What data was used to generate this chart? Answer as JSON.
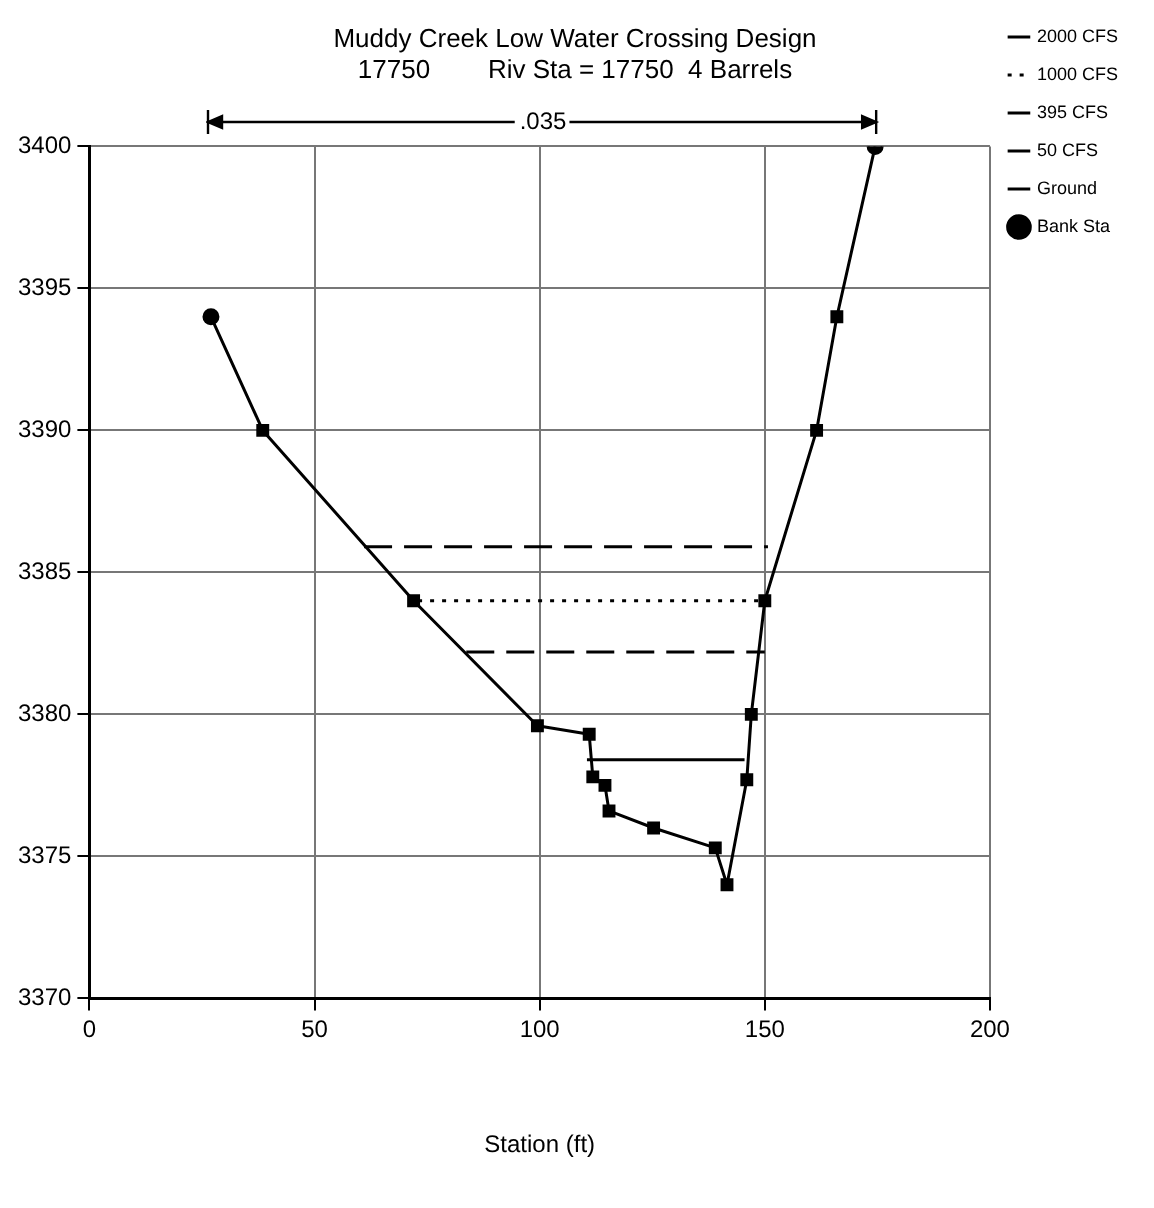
{
  "chart_data": {
    "type": "line",
    "title": "Muddy Creek Low Water Crossing Design",
    "subtitle": "17750        Riv Sta = 17750  4 Barrels",
    "xlabel": "Station (ft)",
    "xlim": [
      0,
      200
    ],
    "xticks": [
      0,
      50,
      100,
      150,
      200
    ],
    "ylim": [
      3370,
      3400
    ],
    "yticks": [
      3370,
      3375,
      3380,
      3385,
      3390,
      3395,
      3400
    ],
    "grid": true,
    "legend": "right",
    "annotations": [
      ".035"
    ],
    "series": [
      {
        "name": "2000 CFS",
        "color": "#000000",
        "marker": "none",
        "line_style": "dashed",
        "x": [
          61,
          150.7
        ],
        "values": [
          3385.9,
          3385.9
        ]
      },
      {
        "name": "1000 CFS",
        "color": "#000000",
        "marker": "none",
        "line_style": "dotted",
        "x": [
          73,
          149.8
        ],
        "values": [
          3384,
          3384
        ]
      },
      {
        "name": "395 CFS",
        "color": "#000000",
        "marker": "none",
        "line_style": "dashed",
        "x": [
          83.7,
          150
        ],
        "values": [
          3382.2,
          3382.2
        ]
      },
      {
        "name": "50 CFS",
        "color": "#000000",
        "marker": "none",
        "line_style": "solid",
        "x": [
          110.5,
          145.5
        ],
        "values": [
          3378.4,
          3378.4
        ]
      },
      {
        "name": "Ground",
        "color": "#000000",
        "marker": "square",
        "line_style": "solid",
        "x": [
          27,
          38.5,
          72,
          99.5,
          111,
          111.8,
          114.5,
          115.4,
          125.3,
          139,
          141.6,
          146,
          147,
          150,
          161.5,
          166,
          174.5
        ],
        "values": [
          3394,
          3390,
          3384,
          3379.6,
          3379.3,
          3377.8,
          3377.5,
          3376.6,
          3376,
          3375.3,
          3374,
          3377.7,
          3380,
          3384,
          3390,
          3394,
          3400
        ]
      },
      {
        "name": "Bank Sta",
        "color": "#000000",
        "type": "scatter",
        "marker": "circle",
        "x": [
          27,
          174.5
        ],
        "values": [
          3394,
          3400
        ]
      }
    ]
  }
}
